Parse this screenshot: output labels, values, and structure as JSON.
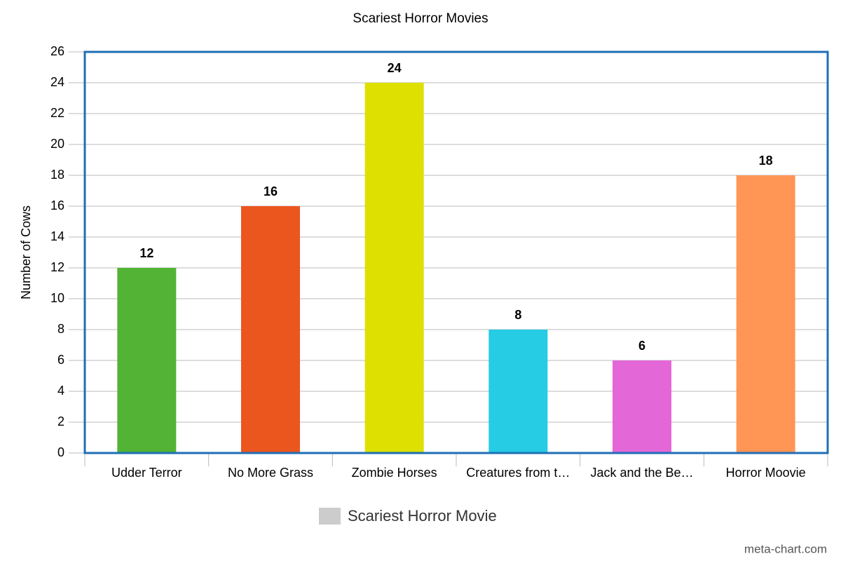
{
  "chart_data": {
    "type": "bar",
    "title": "Scariest Horror Movies",
    "y_label": "Number of Cows",
    "categories": [
      "Udder Terror",
      "No More Grass",
      "Zombie Horses",
      "Creatures from t…",
      "Jack and the Be…",
      "Horror Moovie"
    ],
    "series": [
      {
        "name": "Scariest Horror Movie",
        "color": "#cccccc",
        "colors": [
          "#52b335",
          "#eb561f",
          "#dde000",
          "#26cbe4",
          "#e467d8",
          "#ff9655"
        ],
        "values": [
          12,
          16,
          24,
          8,
          6,
          18
        ]
      }
    ],
    "ylim": [
      0,
      26
    ],
    "yticks": [
      0,
      2,
      4,
      6,
      8,
      10,
      12,
      14,
      16,
      18,
      20,
      22,
      24,
      26
    ],
    "grid": true,
    "legend": "bottom",
    "watermark": "meta-chart.com"
  }
}
